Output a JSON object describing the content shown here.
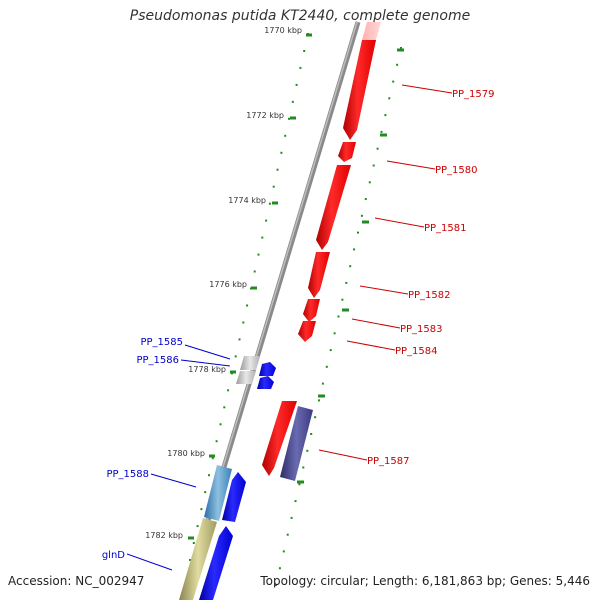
{
  "map": {
    "title": "Pseudomonas putida KT2440, complete genome",
    "footer_left": "Accession: NC_002947",
    "footer_right": "Topology: circular; Length: 6,181,863 bp; Genes: 5,446"
  },
  "ticks": [
    {
      "label": "1770 kbp"
    },
    {
      "label": "1772 kbp"
    },
    {
      "label": "1774 kbp"
    },
    {
      "label": "1776 kbp"
    },
    {
      "label": "1778 kbp"
    },
    {
      "label": "1780 kbp"
    },
    {
      "label": "1782 kbp"
    }
  ],
  "gene_labels": [
    {
      "name": "PP_1579",
      "color": "#cc0000",
      "side": "right"
    },
    {
      "name": "PP_1580",
      "color": "#cc0000",
      "side": "right"
    },
    {
      "name": "PP_1581",
      "color": "#cc0000",
      "side": "right"
    },
    {
      "name": "PP_1582",
      "color": "#cc0000",
      "side": "right"
    },
    {
      "name": "PP_1583",
      "color": "#cc0000",
      "side": "right"
    },
    {
      "name": "PP_1584",
      "color": "#cc0000",
      "side": "right"
    },
    {
      "name": "PP_1587",
      "color": "#cc0000",
      "side": "right"
    },
    {
      "name": "PP_1585",
      "color": "#0000cc",
      "side": "left"
    },
    {
      "name": "PP_1586",
      "color": "#0000cc",
      "side": "left"
    },
    {
      "name": "PP_1588",
      "color": "#0000cc",
      "side": "left"
    },
    {
      "name": "glnD",
      "color": "#0000cc",
      "side": "left"
    }
  ],
  "colors": {
    "forward_cds": "#ff0000",
    "reverse_cds": "#0000ff",
    "rna_feature": "#aaaaaa",
    "misc_feature": "#4a4a8a",
    "misc_feature_blue": "#4a8ac0",
    "misc_feature_olive": "#b5b070",
    "backbone": "#888888",
    "tick_marks": "#228b22"
  }
}
